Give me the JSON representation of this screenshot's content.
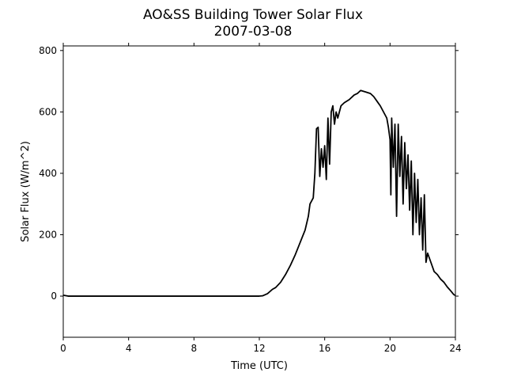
{
  "chart_data": {
    "type": "line",
    "title": "AO&SS Building Tower Solar Flux",
    "subtitle": "2007-03-08",
    "xlabel": "Time (UTC)",
    "ylabel": "Solar Flux (W/m^2)",
    "xlim": [
      0,
      24
    ],
    "xticks": [
      0,
      4,
      8,
      12,
      16,
      20,
      24
    ],
    "ylim": [
      -134,
      815
    ],
    "yticks": [
      0,
      200,
      400,
      600,
      800
    ],
    "grid": false,
    "series": [
      {
        "name": "Solar Flux",
        "color": "#000000",
        "x": [
          0,
          0.3,
          2,
          4,
          6,
          8,
          10,
          12,
          12.2,
          12.5,
          12.8,
          13,
          13.3,
          13.6,
          13.9,
          14.2,
          14.5,
          14.8,
          15.0,
          15.1,
          15.3,
          15.4,
          15.5,
          15.6,
          15.7,
          15.8,
          15.9,
          16.0,
          16.1,
          16.2,
          16.3,
          16.4,
          16.5,
          16.6,
          16.7,
          16.8,
          17.0,
          17.2,
          17.5,
          17.8,
          18.0,
          18.2,
          18.5,
          18.8,
          19.0,
          19.2,
          19.4,
          19.6,
          19.8,
          19.9,
          20.0,
          20.05,
          20.1,
          20.2,
          20.3,
          20.4,
          20.5,
          20.6,
          20.7,
          20.8,
          20.9,
          21.0,
          21.1,
          21.2,
          21.3,
          21.4,
          21.5,
          21.6,
          21.7,
          21.8,
          21.9,
          22.0,
          22.1,
          22.2,
          22.3,
          22.5,
          22.7,
          22.9,
          23.1,
          23.3,
          23.5,
          23.7,
          23.9,
          24
        ],
        "values": [
          3,
          0,
          0,
          0,
          0,
          0,
          0,
          0,
          1,
          8,
          22,
          28,
          45,
          70,
          100,
          135,
          175,
          215,
          260,
          300,
          320,
          400,
          545,
          550,
          390,
          480,
          420,
          490,
          380,
          580,
          430,
          600,
          620,
          560,
          600,
          580,
          620,
          630,
          640,
          655,
          660,
          670,
          665,
          660,
          650,
          635,
          620,
          600,
          580,
          550,
          510,
          330,
          580,
          420,
          560,
          260,
          560,
          390,
          520,
          300,
          500,
          350,
          460,
          280,
          440,
          200,
          400,
          240,
          380,
          200,
          320,
          150,
          330,
          110,
          140,
          110,
          80,
          70,
          55,
          45,
          30,
          18,
          5,
          2
        ]
      }
    ]
  }
}
